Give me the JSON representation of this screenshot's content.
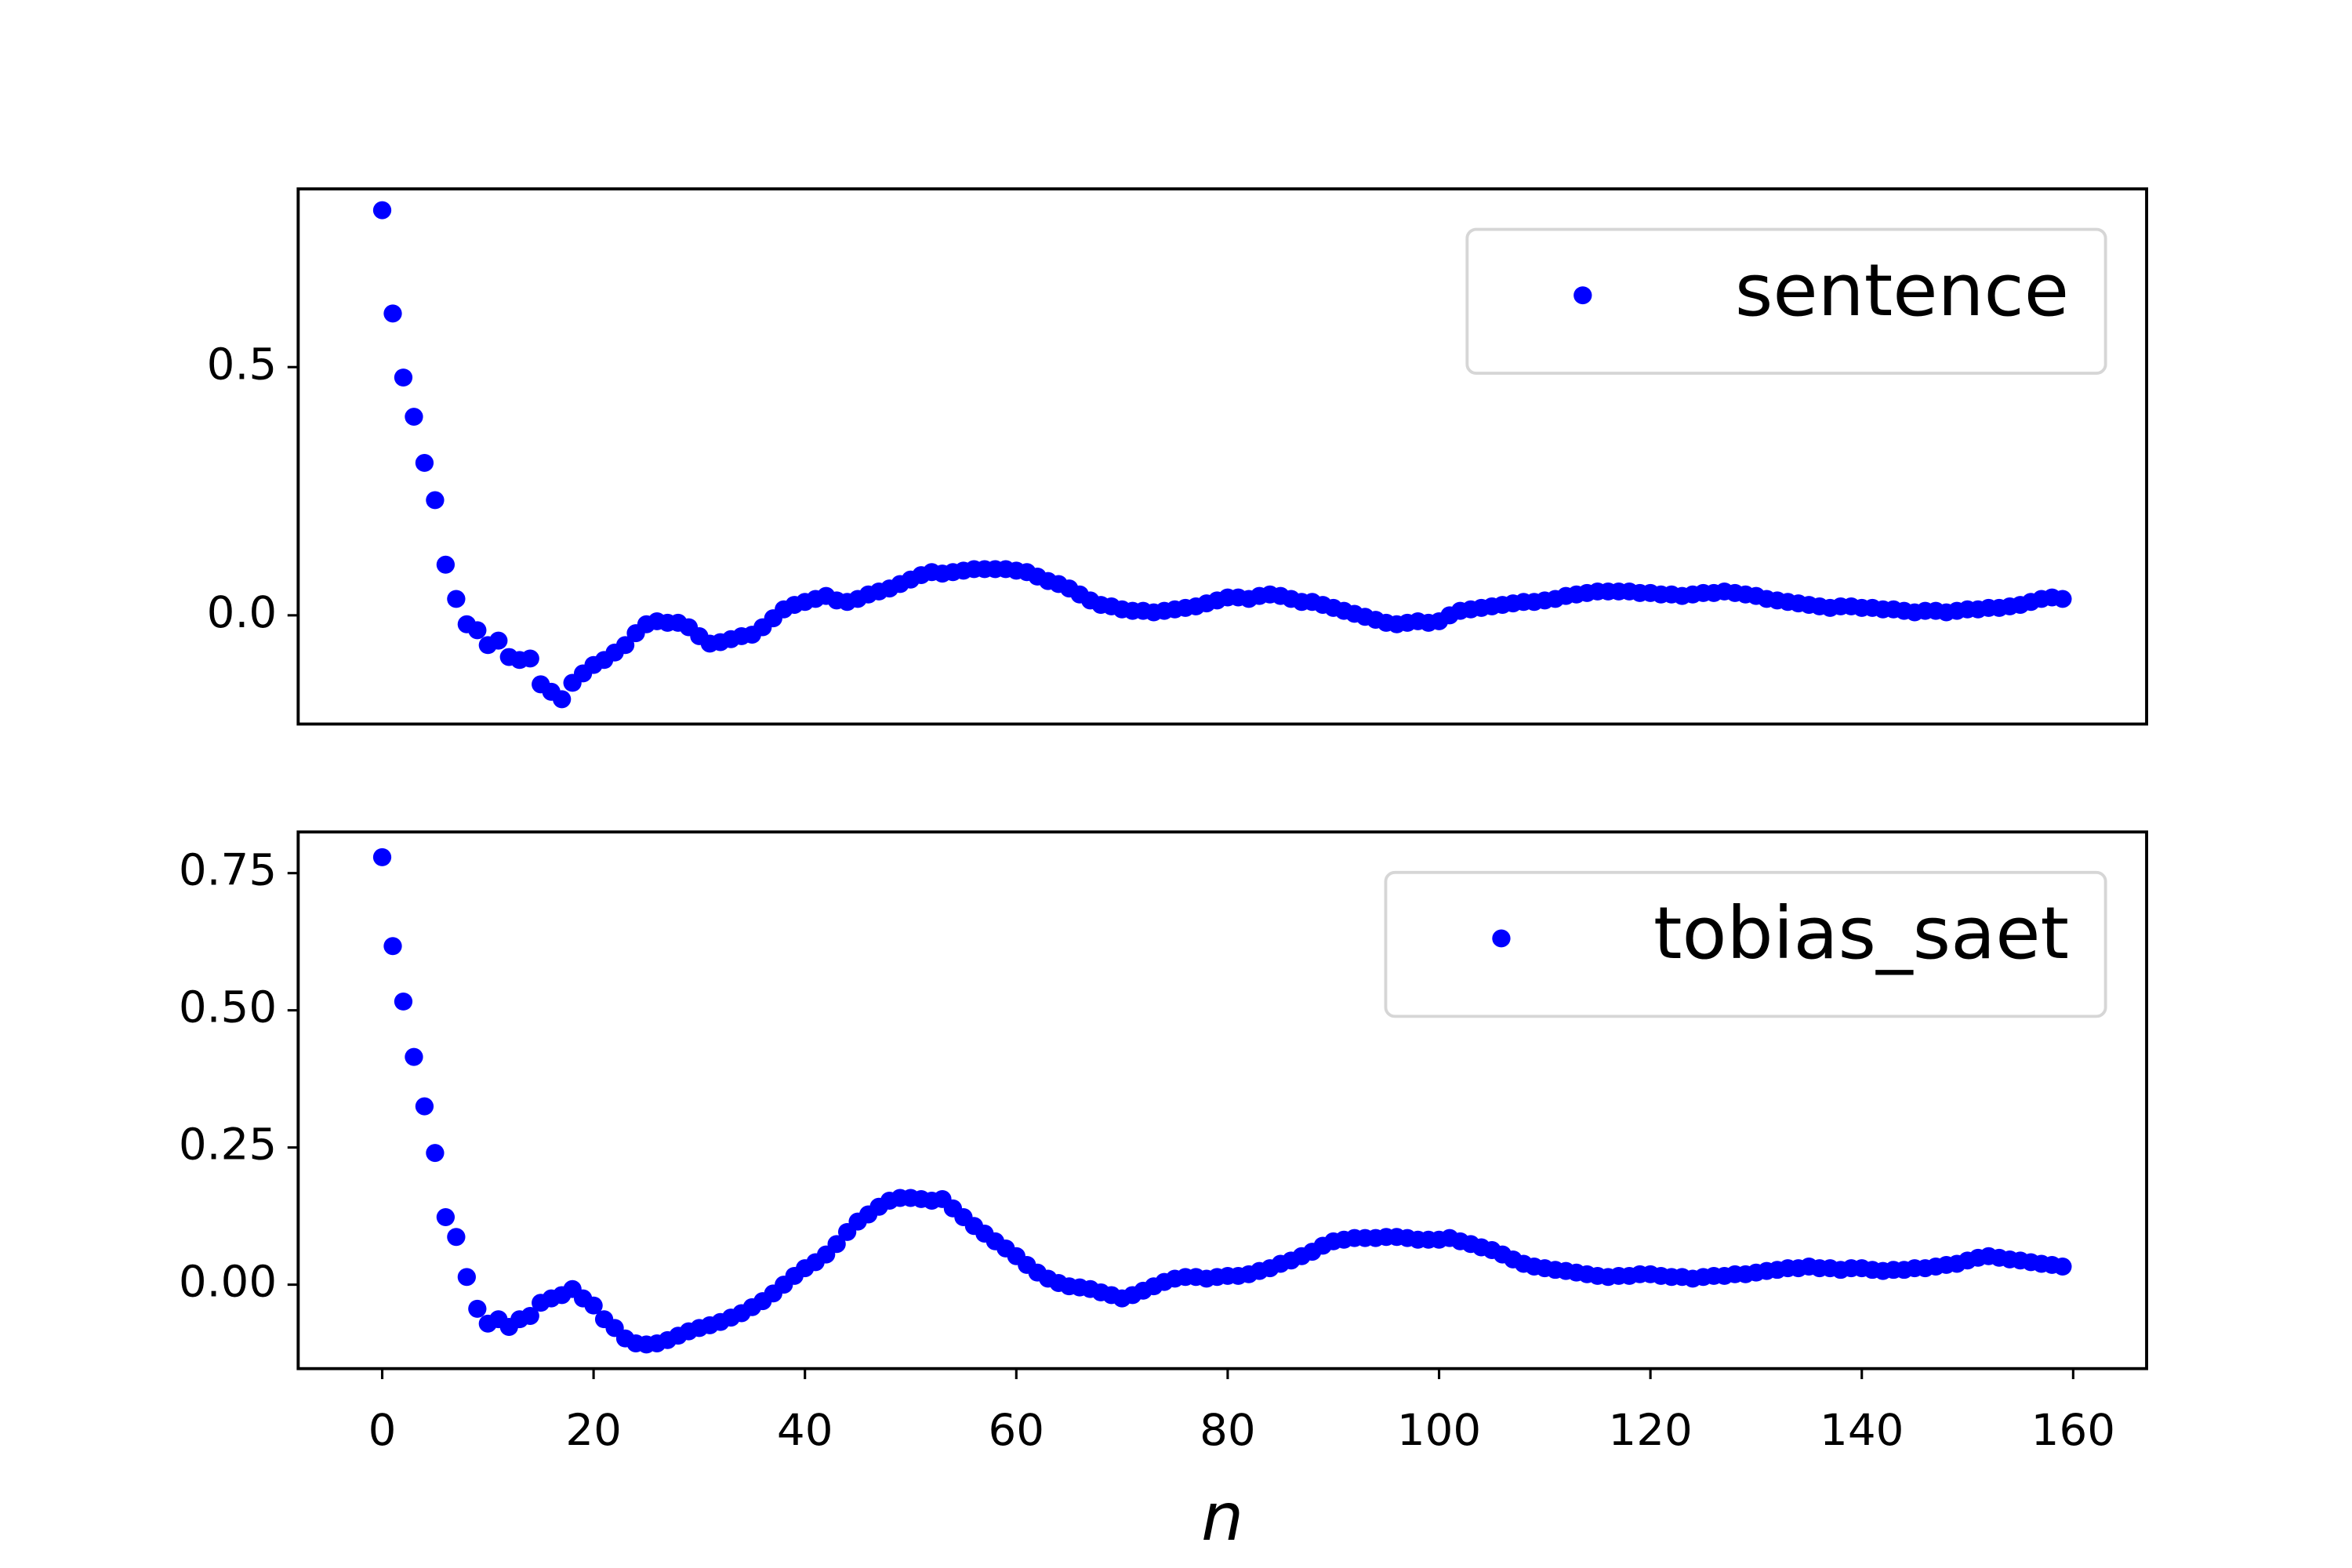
{
  "chart_data": [
    {
      "type": "scatter",
      "x": [
        0,
        1,
        2,
        3,
        4,
        5,
        6,
        7,
        8,
        9,
        10,
        11,
        12,
        13,
        14,
        15,
        16,
        17,
        18,
        19,
        20,
        21,
        22,
        23,
        24,
        25,
        26,
        27,
        28,
        29,
        30,
        31,
        32,
        33,
        34,
        35,
        36,
        37,
        38,
        39,
        40,
        41,
        42,
        43,
        44,
        45,
        46,
        47,
        48,
        49,
        50,
        51,
        52,
        53,
        54,
        55,
        56,
        57,
        58,
        59,
        60,
        61,
        62,
        63,
        64,
        65,
        66,
        67,
        68,
        69,
        70,
        71,
        72,
        73,
        74,
        75,
        76,
        77,
        78,
        79,
        80,
        81,
        82,
        83,
        84,
        85,
        86,
        87,
        88,
        89,
        90,
        91,
        92,
        93,
        94,
        95,
        96,
        97,
        98,
        99,
        100,
        101,
        102,
        103,
        104,
        105,
        106,
        107,
        108,
        109,
        110,
        111,
        112,
        113,
        114,
        115,
        116,
        117,
        118,
        119,
        120,
        121,
        122,
        123,
        124,
        125,
        126,
        127,
        128,
        129,
        130,
        131,
        132,
        133,
        134,
        135,
        136,
        137,
        138,
        139,
        140,
        141,
        142,
        143,
        144,
        145,
        146,
        147,
        148,
        149,
        150,
        151,
        152,
        153,
        154,
        155,
        156,
        157,
        158,
        159
      ],
      "series": [
        {
          "name": "sentence",
          "color": "#0000ff",
          "values": [
            0.816,
            0.608,
            0.479,
            0.4,
            0.307,
            0.232,
            0.102,
            0.033,
            -0.018,
            -0.03,
            -0.06,
            -0.051,
            -0.084,
            -0.09,
            -0.087,
            -0.139,
            -0.154,
            -0.169,
            -0.136,
            -0.117,
            -0.1,
            -0.09,
            -0.075,
            -0.06,
            -0.036,
            -0.018,
            -0.012,
            -0.015,
            -0.015,
            -0.024,
            -0.042,
            -0.057,
            -0.054,
            -0.048,
            -0.042,
            -0.039,
            -0.024,
            -0.006,
            0.012,
            0.021,
            0.027,
            0.033,
            0.039,
            0.03,
            0.027,
            0.033,
            0.042,
            0.048,
            0.054,
            0.063,
            0.072,
            0.081,
            0.087,
            0.084,
            0.087,
            0.09,
            0.093,
            0.093,
            0.093,
            0.093,
            0.09,
            0.087,
            0.078,
            0.069,
            0.063,
            0.054,
            0.042,
            0.03,
            0.021,
            0.018,
            0.012,
            0.009,
            0.009,
            0.006,
            0.009,
            0.012,
            0.015,
            0.018,
            0.024,
            0.03,
            0.036,
            0.036,
            0.033,
            0.039,
            0.042,
            0.039,
            0.033,
            0.027,
            0.027,
            0.021,
            0.015,
            0.009,
            0.003,
            -0.003,
            -0.009,
            -0.015,
            -0.018,
            -0.015,
            -0.012,
            -0.015,
            -0.012,
            0.0,
            0.009,
            0.012,
            0.015,
            0.018,
            0.021,
            0.024,
            0.027,
            0.027,
            0.03,
            0.033,
            0.039,
            0.042,
            0.045,
            0.048,
            0.048,
            0.048,
            0.048,
            0.045,
            0.045,
            0.042,
            0.042,
            0.039,
            0.042,
            0.045,
            0.045,
            0.048,
            0.045,
            0.042,
            0.039,
            0.033,
            0.03,
            0.027,
            0.024,
            0.021,
            0.018,
            0.015,
            0.018,
            0.018,
            0.015,
            0.015,
            0.012,
            0.012,
            0.009,
            0.006,
            0.009,
            0.009,
            0.006,
            0.009,
            0.012,
            0.012,
            0.015,
            0.015,
            0.018,
            0.021,
            0.027,
            0.033,
            0.036,
            0.033
          ]
        }
      ],
      "xlim": [
        -7.95,
        166.95
      ],
      "ylim": [
        -0.219,
        0.859
      ],
      "yticks": [
        {
          "value": 0,
          "label": "0.0"
        },
        {
          "value": 0.5,
          "label": "0.5"
        }
      ],
      "legend": "upper right"
    },
    {
      "type": "scatter",
      "x": [
        0,
        1,
        2,
        3,
        4,
        5,
        6,
        7,
        8,
        9,
        10,
        11,
        12,
        13,
        14,
        15,
        16,
        17,
        18,
        19,
        20,
        21,
        22,
        23,
        24,
        25,
        26,
        27,
        28,
        29,
        30,
        31,
        32,
        33,
        34,
        35,
        36,
        37,
        38,
        39,
        40,
        41,
        42,
        43,
        44,
        45,
        46,
        47,
        48,
        49,
        50,
        51,
        52,
        53,
        54,
        55,
        56,
        57,
        58,
        59,
        60,
        61,
        62,
        63,
        64,
        65,
        66,
        67,
        68,
        69,
        70,
        71,
        72,
        73,
        74,
        75,
        76,
        77,
        78,
        79,
        80,
        81,
        82,
        83,
        84,
        85,
        86,
        87,
        88,
        89,
        90,
        91,
        92,
        93,
        94,
        95,
        96,
        97,
        98,
        99,
        100,
        101,
        102,
        103,
        104,
        105,
        106,
        107,
        108,
        109,
        110,
        111,
        112,
        113,
        114,
        115,
        116,
        117,
        118,
        119,
        120,
        121,
        122,
        123,
        124,
        125,
        126,
        127,
        128,
        129,
        130,
        131,
        132,
        133,
        134,
        135,
        136,
        137,
        138,
        139,
        140,
        141,
        142,
        143,
        144,
        145,
        146,
        147,
        148,
        149,
        150,
        151,
        152,
        153,
        154,
        155,
        156,
        157,
        158,
        159
      ],
      "series": [
        {
          "name": "tobias_saet",
          "color": "#0000ff",
          "values": [
            0.779,
            0.617,
            0.516,
            0.415,
            0.325,
            0.24,
            0.123,
            0.087,
            0.014,
            -0.044,
            -0.071,
            -0.063,
            -0.077,
            -0.063,
            -0.057,
            -0.033,
            -0.025,
            -0.019,
            -0.008,
            -0.025,
            -0.038,
            -0.063,
            -0.079,
            -0.098,
            -0.107,
            -0.109,
            -0.107,
            -0.101,
            -0.093,
            -0.085,
            -0.079,
            -0.074,
            -0.068,
            -0.06,
            -0.052,
            -0.041,
            -0.03,
            -0.016,
            0.0,
            0.016,
            0.03,
            0.041,
            0.055,
            0.074,
            0.096,
            0.115,
            0.128,
            0.142,
            0.153,
            0.158,
            0.158,
            0.156,
            0.153,
            0.156,
            0.139,
            0.123,
            0.107,
            0.093,
            0.079,
            0.066,
            0.052,
            0.036,
            0.022,
            0.011,
            0.003,
            -0.003,
            -0.005,
            -0.008,
            -0.014,
            -0.019,
            -0.025,
            -0.019,
            -0.011,
            -0.003,
            0.005,
            0.011,
            0.014,
            0.014,
            0.011,
            0.014,
            0.016,
            0.016,
            0.019,
            0.025,
            0.03,
            0.038,
            0.044,
            0.052,
            0.06,
            0.071,
            0.079,
            0.082,
            0.085,
            0.085,
            0.085,
            0.087,
            0.087,
            0.085,
            0.082,
            0.082,
            0.082,
            0.085,
            0.079,
            0.074,
            0.068,
            0.063,
            0.055,
            0.046,
            0.038,
            0.033,
            0.03,
            0.027,
            0.025,
            0.022,
            0.019,
            0.016,
            0.014,
            0.016,
            0.016,
            0.019,
            0.019,
            0.016,
            0.014,
            0.014,
            0.011,
            0.014,
            0.016,
            0.016,
            0.019,
            0.019,
            0.022,
            0.025,
            0.027,
            0.03,
            0.03,
            0.033,
            0.03,
            0.03,
            0.027,
            0.03,
            0.03,
            0.027,
            0.025,
            0.027,
            0.027,
            0.03,
            0.03,
            0.033,
            0.036,
            0.038,
            0.044,
            0.049,
            0.052,
            0.049,
            0.046,
            0.044,
            0.041,
            0.038,
            0.036,
            0.033
          ]
        }
      ],
      "xlim": [
        -7.95,
        166.95
      ],
      "ylim": [
        -0.153,
        0.825
      ],
      "xticks": [
        0,
        20,
        40,
        60,
        80,
        100,
        120,
        140,
        160
      ],
      "yticks": [
        {
          "value": 0,
          "label": "0.00"
        },
        {
          "value": 0.25,
          "label": "0.25"
        },
        {
          "value": 0.5,
          "label": "0.50"
        },
        {
          "value": 0.75,
          "label": "0.75"
        }
      ],
      "xlabel": "n",
      "legend": "upper right"
    }
  ]
}
